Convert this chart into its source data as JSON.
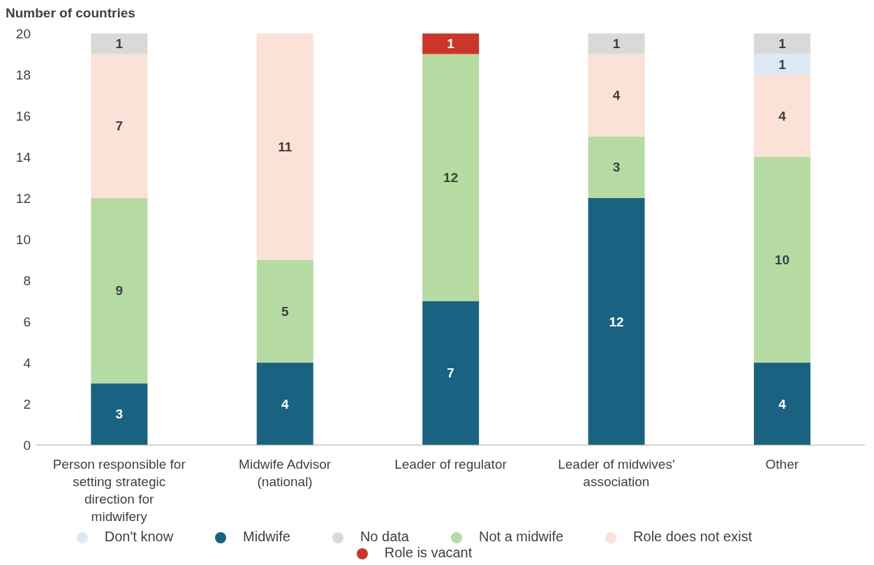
{
  "chart_data": {
    "type": "bar",
    "stacked": true,
    "ylabel": "Number of countries",
    "categories": [
      "Person responsible for setting strategic direction for midwifery",
      "Midwife Advisor (national)",
      "Leader of regulator",
      "Leader of midwives' association",
      "Other"
    ],
    "series": [
      {
        "name": "Midwife",
        "color": "#1a6282",
        "values": [
          3,
          4,
          7,
          12,
          4
        ]
      },
      {
        "name": "Not a midwife",
        "color": "#b5dba2",
        "values": [
          9,
          5,
          12,
          3,
          10
        ]
      },
      {
        "name": "Role does not exist",
        "color": "#fbe1d6",
        "values": [
          7,
          11,
          null,
          4,
          4
        ]
      },
      {
        "name": "Don't know",
        "color": "#dce9f5",
        "values": [
          null,
          null,
          null,
          null,
          1
        ]
      },
      {
        "name": "Role is vacant",
        "color": "#cc3527",
        "values": [
          null,
          null,
          1,
          null,
          null
        ]
      },
      {
        "name": "No data",
        "color": "#d9d9d9",
        "values": [
          1,
          null,
          null,
          1,
          1
        ]
      }
    ],
    "ylim": [
      0,
      20
    ],
    "yticks": [
      0,
      2,
      4,
      6,
      8,
      10,
      12,
      14,
      16,
      18,
      20
    ],
    "grid": false,
    "legend": "bottom",
    "data_labels": true
  }
}
